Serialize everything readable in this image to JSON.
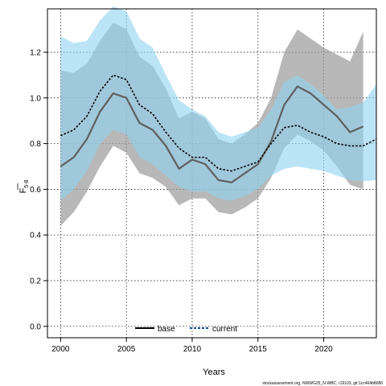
{
  "chart_data": {
    "type": "line",
    "xlabel": "Years",
    "ylabel_main": "F",
    "ylabel_sub": "5-8",
    "xlim": [
      1999,
      2024
    ],
    "ylim": [
      -0.05,
      1.39
    ],
    "xticks": [
      2000,
      2005,
      2010,
      2015,
      2020
    ],
    "yticks": [
      0.0,
      0.2,
      0.4,
      0.6,
      0.8,
      1.0,
      1.2
    ],
    "grid": true,
    "legend_position": "bottom-center",
    "footer": "stockassessment.org, NWWG25_N-WBC, r19103, git:1cc464b8086",
    "colors": {
      "base_line": "#5f5f5f",
      "base_band": "#9a9a9a",
      "current_line": "#000000",
      "current_band": "#8fd2f2"
    },
    "series": [
      {
        "name": "base",
        "x": [
          2000,
          2001,
          2002,
          2003,
          2004,
          2005,
          2006,
          2007,
          2008,
          2009,
          2010,
          2011,
          2012,
          2013,
          2014,
          2015,
          2016,
          2017,
          2018,
          2019,
          2020,
          2021,
          2022,
          2023
        ],
        "values": [
          0.7,
          0.74,
          0.82,
          0.94,
          1.02,
          1.0,
          0.89,
          0.86,
          0.79,
          0.69,
          0.73,
          0.71,
          0.64,
          0.63,
          0.67,
          0.71,
          0.81,
          0.97,
          1.05,
          1.02,
          0.97,
          0.92,
          0.85,
          0.875
        ],
        "lower": [
          0.44,
          0.5,
          0.59,
          0.7,
          0.79,
          0.76,
          0.67,
          0.65,
          0.61,
          0.53,
          0.56,
          0.56,
          0.5,
          0.49,
          0.52,
          0.56,
          0.65,
          0.78,
          0.84,
          0.81,
          0.77,
          0.7,
          0.62,
          0.6
        ],
        "upper": [
          1.12,
          1.11,
          1.15,
          1.25,
          1.33,
          1.3,
          1.18,
          1.14,
          1.04,
          0.91,
          0.94,
          0.91,
          0.82,
          0.8,
          0.84,
          0.89,
          1.0,
          1.2,
          1.3,
          1.26,
          1.22,
          1.19,
          1.16,
          1.29
        ]
      },
      {
        "name": "current",
        "x": [
          2000,
          2001,
          2002,
          2003,
          2004,
          2005,
          2006,
          2007,
          2008,
          2009,
          2010,
          2011,
          2012,
          2013,
          2014,
          2015,
          2016,
          2017,
          2018,
          2019,
          2020,
          2021,
          2022,
          2023,
          2024
        ],
        "values": [
          0.835,
          0.86,
          0.92,
          1.03,
          1.1,
          1.08,
          0.97,
          0.93,
          0.85,
          0.78,
          0.74,
          0.74,
          0.69,
          0.68,
          0.7,
          0.72,
          0.8,
          0.87,
          0.88,
          0.85,
          0.83,
          0.8,
          0.79,
          0.79,
          0.82
        ],
        "lower": [
          0.55,
          0.6,
          0.68,
          0.8,
          0.86,
          0.84,
          0.74,
          0.71,
          0.66,
          0.61,
          0.59,
          0.59,
          0.56,
          0.55,
          0.57,
          0.6,
          0.66,
          0.69,
          0.7,
          0.69,
          0.68,
          0.66,
          0.64,
          0.635,
          0.64
        ],
        "upper": [
          1.27,
          1.24,
          1.25,
          1.34,
          1.4,
          1.38,
          1.26,
          1.22,
          1.1,
          0.99,
          0.95,
          0.92,
          0.85,
          0.83,
          0.85,
          0.87,
          0.95,
          1.07,
          1.1,
          1.06,
          1.01,
          0.95,
          0.96,
          0.98,
          1.06
        ]
      }
    ]
  }
}
